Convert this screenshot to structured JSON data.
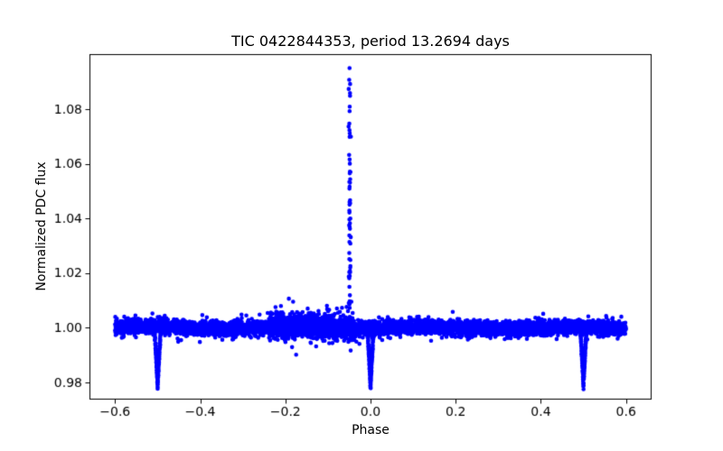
{
  "figure": {
    "background": "#ffffff"
  },
  "chart_data": {
    "type": "scatter",
    "title": "TIC 0422844353, period 13.2694 days",
    "xlabel": "Phase",
    "ylabel": "Normalized PDC flux",
    "grid": false,
    "legend": false,
    "marker_color": "#0000ff",
    "marker_radius_px": 2.3,
    "axis_color": "#000000",
    "tick_label_color": "#000000",
    "xlim": [
      -0.66,
      0.66
    ],
    "ylim": [
      0.9737,
      1.1001
    ],
    "x_ticks": [
      -0.6,
      -0.4,
      -0.2,
      0.0,
      0.2,
      0.4,
      0.6
    ],
    "x_tick_labels": [
      "−0.6",
      "−0.4",
      "−0.2",
      "0.0",
      "0.2",
      "0.4",
      "0.6"
    ],
    "y_ticks": [
      0.98,
      1.0,
      1.02,
      1.04,
      1.06,
      1.08
    ],
    "y_tick_labels": [
      "0.98",
      "1.00",
      "1.02",
      "1.04",
      "1.06",
      "1.08"
    ],
    "seed": 7,
    "series": {
      "baseline_band": {
        "x_min": -0.6,
        "x_max": 0.6,
        "flux_mean": 1.0,
        "noise_sigma": 0.0012,
        "outlier_fraction": 0.02,
        "outlier_sigma_factor": 2.2,
        "mean_wiggle": {
          "amplitude": 0.0004,
          "period_phase": 0.33
        },
        "noise_boost": {
          "x_min": -0.24,
          "x_max": -0.04,
          "factor": 1.8,
          "mean_shift": 0.0004
        },
        "n_points": 7200
      },
      "eclipses": [
        {
          "name": "secondary-eclipse-left",
          "phase": -0.5,
          "depth": 0.021,
          "half_width_phase": 0.008,
          "n_points": 280
        },
        {
          "name": "primary-eclipse",
          "phase": 0.0,
          "depth": 0.0215,
          "half_width_phase": 0.008,
          "n_points": 280
        },
        {
          "name": "secondary-eclipse-right",
          "phase": 0.5,
          "depth": 0.021,
          "half_width_phase": 0.008,
          "n_points": 280
        }
      ],
      "flare": {
        "phase": -0.049,
        "base_flux": 1.002,
        "peak_flux": 1.095,
        "x_jitter_sigma": 0.0012,
        "n_points": 60
      },
      "outliers": [
        {
          "x": -0.072,
          "y": 1.0058
        },
        {
          "x": -0.067,
          "y": 1.0073
        },
        {
          "x": -0.064,
          "y": 1.0045
        },
        {
          "x": -0.045,
          "y": 1.0095
        },
        {
          "x": -0.038,
          "y": 0.9955
        },
        {
          "x": -0.052,
          "y": 0.9948
        }
      ]
    }
  }
}
